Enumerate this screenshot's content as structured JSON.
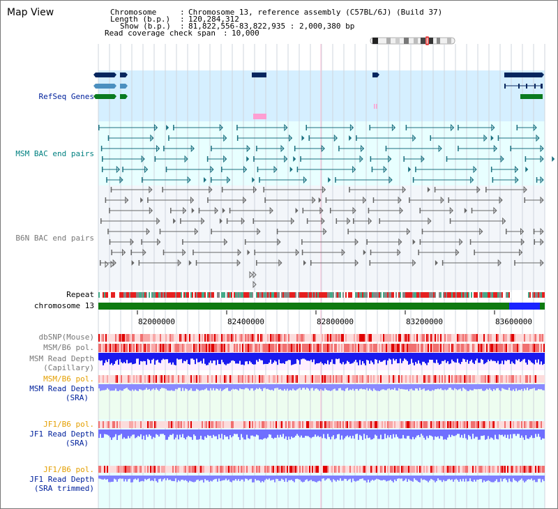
{
  "page": {
    "title": "Map View"
  },
  "info": {
    "chromosome_key": "Chromosome",
    "chromosome_val": "Chromosome 13, reference assembly (C57BL/6J) (Build 37)",
    "length_key": "Length (b.p.)",
    "length_val": "120,284,312",
    "show_key": "Show (b.p.)",
    "show_val": "81,822,556-83,822,935 : 2,000,380 bp",
    "read_coverage_key": "Read coverage check span",
    "read_coverage_val": "10,000"
  },
  "tracks": {
    "refseq": "RefSeq Genes",
    "msm_bac": "MSM BAC end pairs",
    "b6n_bac": "B6N BAC end pairs",
    "repeat": "Repeat",
    "chromosome": "chromosome 13",
    "dbsnp": "dbSNP(Mouse)",
    "msm_b6_pol": "MSM/B6 pol.",
    "msm_depth_cap_1": "MSM Read Depth",
    "msm_depth_cap_2": "(Capillary)",
    "msm_b6_pol_2": "MSM/B6 pol.",
    "msm_depth_sra_1": "MSM Read Depth",
    "msm_depth_sra_2": "(SRA)",
    "jf1_b6_pol": "JF1/B6 pol.",
    "jf1_depth_sra_1": "JF1 Read Depth",
    "jf1_depth_sra_2": "(SRA)",
    "jf1_b6_pol_2": "JF1/B6 pol.",
    "jf1_depth_trim_1": "JF1 Read Depth",
    "jf1_depth_trim_2": "(SRA trimmed)"
  },
  "axis": {
    "ticks": [
      "82000000",
      "82400000",
      "82800000",
      "83200000",
      "83600000"
    ],
    "range_start": 81822556,
    "range_end": 83822935
  },
  "colors": {
    "refseq_bg": "#d5efff",
    "msm_bg": "#e8ffff",
    "b6n_bg": "#f3f6fa",
    "gene_dark": "#06265e",
    "gene_mid": "#4b8fbf",
    "gene_green": "#0a7a1f",
    "chromosome_green": "#0e7a10",
    "chromosome_blue": "#1a24ff",
    "repeat_red": "#e62020",
    "msm_bac_color": "#1a6f7f",
    "b6n_bac_color": "#666666",
    "pol_red": "#f07070",
    "depth_blue": "#1a1aee",
    "depth_light": "#7f7fff"
  }
}
